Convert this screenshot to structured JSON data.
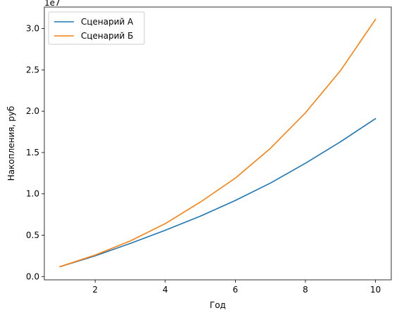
{
  "chart_data": {
    "type": "line",
    "title": "",
    "xlabel": "Год",
    "ylabel": "Накопления, руб",
    "y_offset_label": "1e7",
    "y_multiplier": 10000000,
    "xlim": [
      0.55,
      10.45
    ],
    "ylim": [
      -0.04,
      3.26
    ],
    "x_ticks": [
      2,
      4,
      6,
      8,
      10
    ],
    "y_ticks": [
      0.0,
      0.5,
      1.0,
      1.5,
      2.0,
      2.5,
      3.0
    ],
    "y_tick_labels": [
      "0.0",
      "0.5",
      "1.0",
      "1.5",
      "2.0",
      "2.5",
      "3.0"
    ],
    "grid": false,
    "legend_position": "top-left",
    "x": [
      1,
      2,
      3,
      4,
      5,
      6,
      7,
      8,
      9,
      10
    ],
    "series": [
      {
        "name": "Сценарий А",
        "color": "#1f77b4",
        "values": [
          0.12,
          0.25,
          0.4,
          0.56,
          0.73,
          0.92,
          1.13,
          1.37,
          1.63,
          1.91
        ]
      },
      {
        "name": "Сценарий Б",
        "color": "#ff7f0e",
        "values": [
          0.12,
          0.26,
          0.43,
          0.64,
          0.9,
          1.19,
          1.55,
          1.98,
          2.49,
          3.11
        ]
      }
    ]
  }
}
